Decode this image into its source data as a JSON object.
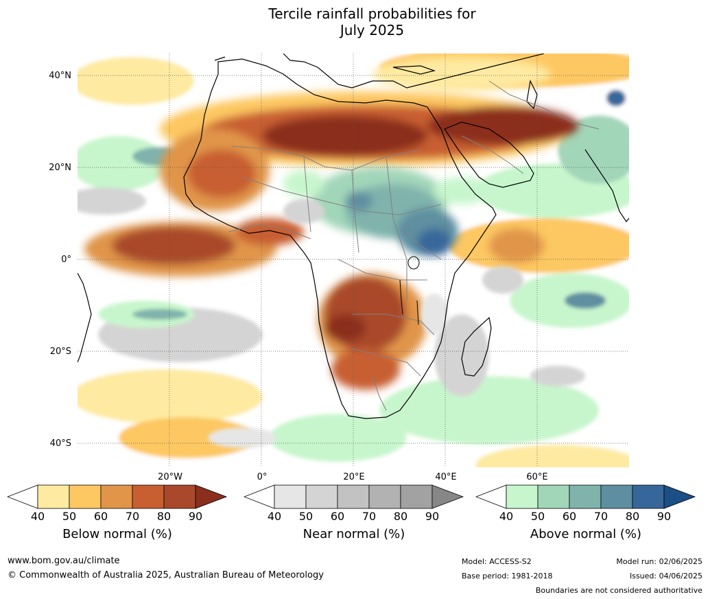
{
  "title_line1": "Tercile rainfall probabilities for",
  "title_line2": "July 2025",
  "lat_labels": [
    "40°N",
    "20°N",
    "0°",
    "20°S",
    "40°S"
  ],
  "lon_labels": [
    "20°W",
    "0°",
    "20°E",
    "40°E",
    "60°E"
  ],
  "colorbars": [
    {
      "label": "Below normal (%)",
      "ticks": [
        "40",
        "50",
        "60",
        "70",
        "80",
        "90"
      ],
      "colors": [
        "#ffffff",
        "#feeaa0",
        "#fdc862",
        "#e09548",
        "#c85f30",
        "#a9482a",
        "#8b2e1e"
      ]
    },
    {
      "label": "Near normal (%)",
      "ticks": [
        "40",
        "50",
        "60",
        "70",
        "80",
        "90"
      ],
      "colors": [
        "#ffffff",
        "#e6e6e6",
        "#d4d4d4",
        "#c2c2c2",
        "#b2b2b2",
        "#a2a2a2",
        "#878787"
      ]
    },
    {
      "label": "Above normal (%)",
      "ticks": [
        "40",
        "50",
        "60",
        "70",
        "80",
        "90"
      ],
      "colors": [
        "#ffffff",
        "#c7f6cc",
        "#a2d6b9",
        "#7fb3ac",
        "#5e8fa0",
        "#37679a",
        "#1b4f85"
      ]
    }
  ],
  "footer": {
    "website": "www.bom.gov.au/climate",
    "copyright": "© Commonwealth of Australia 2025, Australian Bureau of Meteorology",
    "model": "Model: ACCESS-S2",
    "base_period": "Base period: 1981-2018",
    "model_run": "Model run: 02/06/2025",
    "issued": "Issued: 04/06/2025",
    "disclaimer": "Boundaries are not considered authoritative"
  }
}
